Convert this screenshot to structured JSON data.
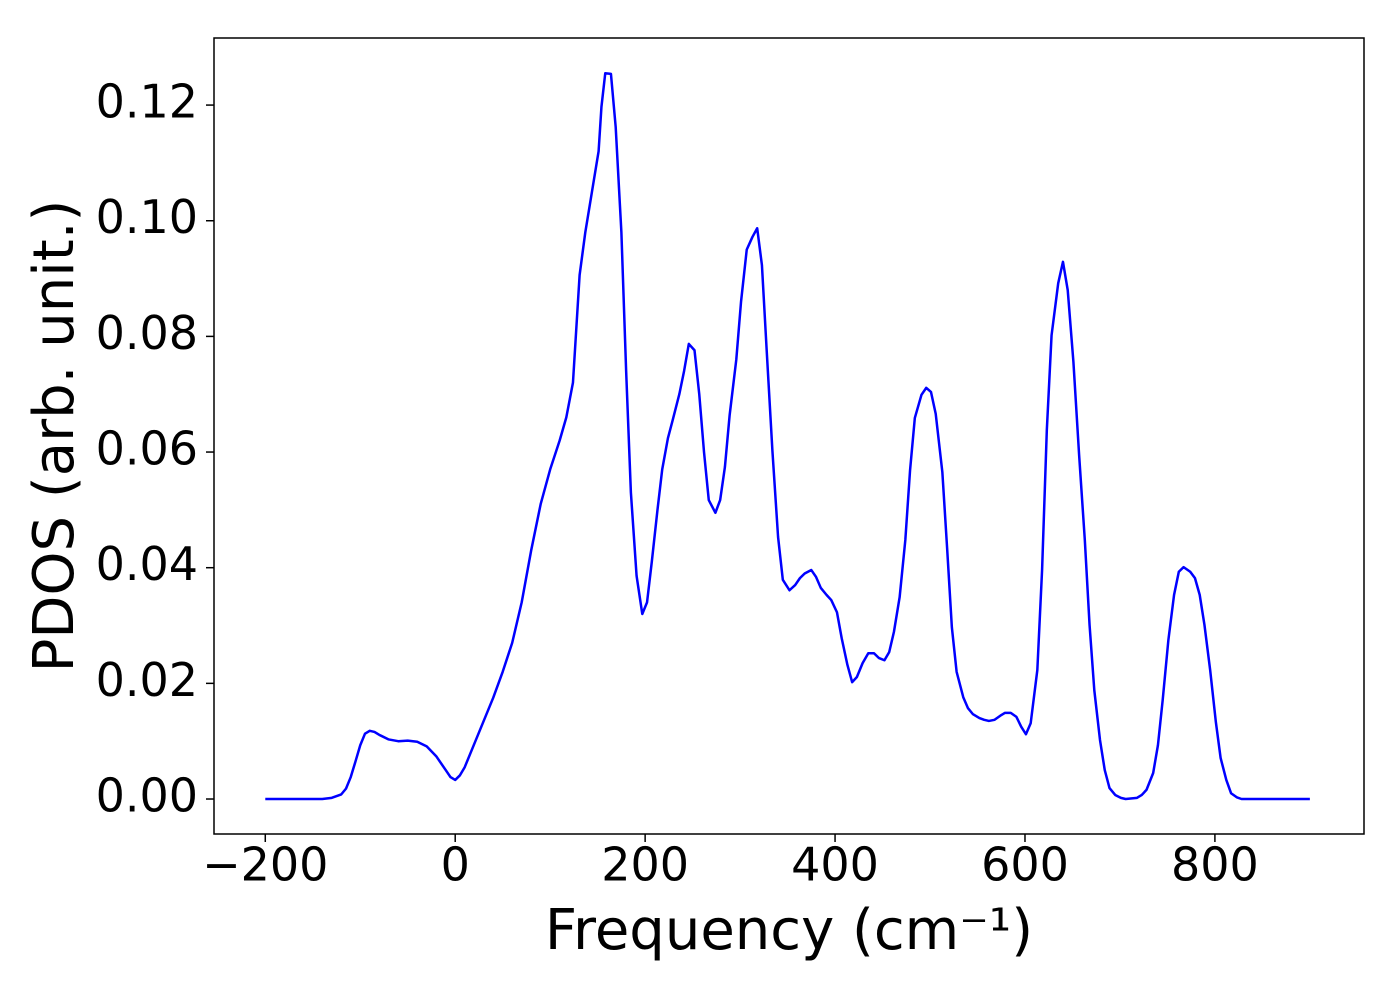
{
  "chart_data": {
    "type": "line",
    "xlabel": "Frequency (cm⁻¹)",
    "ylabel": "PDOS (arb. unit.)",
    "color": "#0000ff",
    "x": [
      -200,
      -180,
      -160,
      -140,
      -130,
      -120,
      -115,
      -110,
      -105,
      -100,
      -95,
      -90,
      -85,
      -80,
      -70,
      -60,
      -50,
      -40,
      -30,
      -20,
      -10,
      -5,
      0,
      5,
      10,
      20,
      30,
      40,
      50,
      60,
      70,
      80,
      90,
      100,
      110,
      117,
      124,
      131,
      137,
      144,
      151,
      154,
      158,
      164,
      169,
      175,
      180,
      185,
      191,
      197,
      202,
      207,
      213,
      218,
      224,
      229,
      236,
      241,
      246,
      252,
      257,
      262,
      267,
      274,
      279,
      284,
      289,
      296,
      301,
      307,
      313,
      318,
      323,
      328,
      334,
      340,
      345,
      352,
      358,
      363,
      368,
      375,
      380,
      385,
      391,
      396,
      402,
      407,
      413,
      418,
      423,
      429,
      435,
      441,
      446,
      452,
      457,
      462,
      468,
      474,
      479,
      484,
      491,
      496,
      501,
      506,
      513,
      518,
      523,
      528,
      535,
      540,
      545,
      552,
      557,
      562,
      568,
      574,
      579,
      585,
      591,
      596,
      601,
      606,
      613,
      618,
      623,
      628,
      635,
      640,
      645,
      651,
      657,
      663,
      668,
      673,
      679,
      684,
      689,
      695,
      701,
      706,
      718,
      723,
      728,
      735,
      740,
      745,
      751,
      757,
      762,
      767,
      774,
      779,
      784,
      789,
      795,
      801,
      806,
      812,
      817,
      823,
      828,
      850,
      875,
      900
    ],
    "values": [
      0,
      0,
      0,
      0,
      0.0002,
      0.0008,
      0.0018,
      0.0038,
      0.0065,
      0.0093,
      0.0113,
      0.0118,
      0.0116,
      0.0111,
      0.0103,
      0.01,
      0.0101,
      0.0099,
      0.0091,
      0.0074,
      0.005,
      0.0038,
      0.0033,
      0.0041,
      0.0055,
      0.0095,
      0.0135,
      0.0175,
      0.022,
      0.027,
      0.034,
      0.043,
      0.051,
      0.057,
      0.062,
      0.066,
      0.072,
      0.0906,
      0.098,
      0.105,
      0.112,
      0.1197,
      0.1255,
      0.1254,
      0.1162,
      0.098,
      0.074,
      0.053,
      0.0386,
      0.032,
      0.034,
      0.041,
      0.05,
      0.057,
      0.0624,
      0.0655,
      0.07,
      0.074,
      0.0787,
      0.0776,
      0.07,
      0.06,
      0.0517,
      0.0495,
      0.0517,
      0.0574,
      0.0664,
      0.076,
      0.086,
      0.095,
      0.0972,
      0.0987,
      0.0923,
      0.0776,
      0.0603,
      0.0453,
      0.0379,
      0.0361,
      0.037,
      0.0382,
      0.039,
      0.0396,
      0.0384,
      0.0365,
      0.0353,
      0.0344,
      0.0323,
      0.0278,
      0.0232,
      0.0202,
      0.0211,
      0.0235,
      0.0252,
      0.0252,
      0.0244,
      0.024,
      0.0254,
      0.0289,
      0.0349,
      0.0448,
      0.0569,
      0.0659,
      0.0699,
      0.0711,
      0.0704,
      0.0666,
      0.0565,
      0.0434,
      0.0297,
      0.022,
      0.0176,
      0.0157,
      0.0147,
      0.014,
      0.0137,
      0.0135,
      0.0137,
      0.0144,
      0.0149,
      0.0149,
      0.0142,
      0.0125,
      0.0112,
      0.0131,
      0.0223,
      0.0396,
      0.0638,
      0.0802,
      0.0892,
      0.0929,
      0.088,
      0.0756,
      0.0595,
      0.0448,
      0.0301,
      0.0188,
      0.0102,
      0.005,
      0.0019,
      0.0007,
      0.0002,
      0,
      0.0002,
      0.0007,
      0.0016,
      0.0045,
      0.0093,
      0.0171,
      0.0275,
      0.0353,
      0.0393,
      0.0401,
      0.0393,
      0.0382,
      0.0353,
      0.0301,
      0.0223,
      0.0133,
      0.0071,
      0.0033,
      0.001,
      0.0003,
      0,
      0,
      0,
      0
    ],
    "xlim": [
      -254,
      957
    ],
    "ylim": [
      -0.00605,
      0.1316
    ],
    "xticks": [
      {
        "value": -200,
        "label": "−200"
      },
      0,
      200,
      400,
      600,
      800
    ],
    "yticks": [
      {
        "value": 0,
        "label": "0.00"
      },
      {
        "value": 0.02,
        "label": "0.02"
      },
      {
        "value": 0.04,
        "label": "0.04"
      },
      {
        "value": 0.06,
        "label": "0.06"
      },
      {
        "value": 0.08,
        "label": "0.08"
      },
      {
        "value": 0.1,
        "label": "0.10"
      },
      {
        "value": 0.12,
        "label": "0.12"
      }
    ],
    "grid": false
  }
}
